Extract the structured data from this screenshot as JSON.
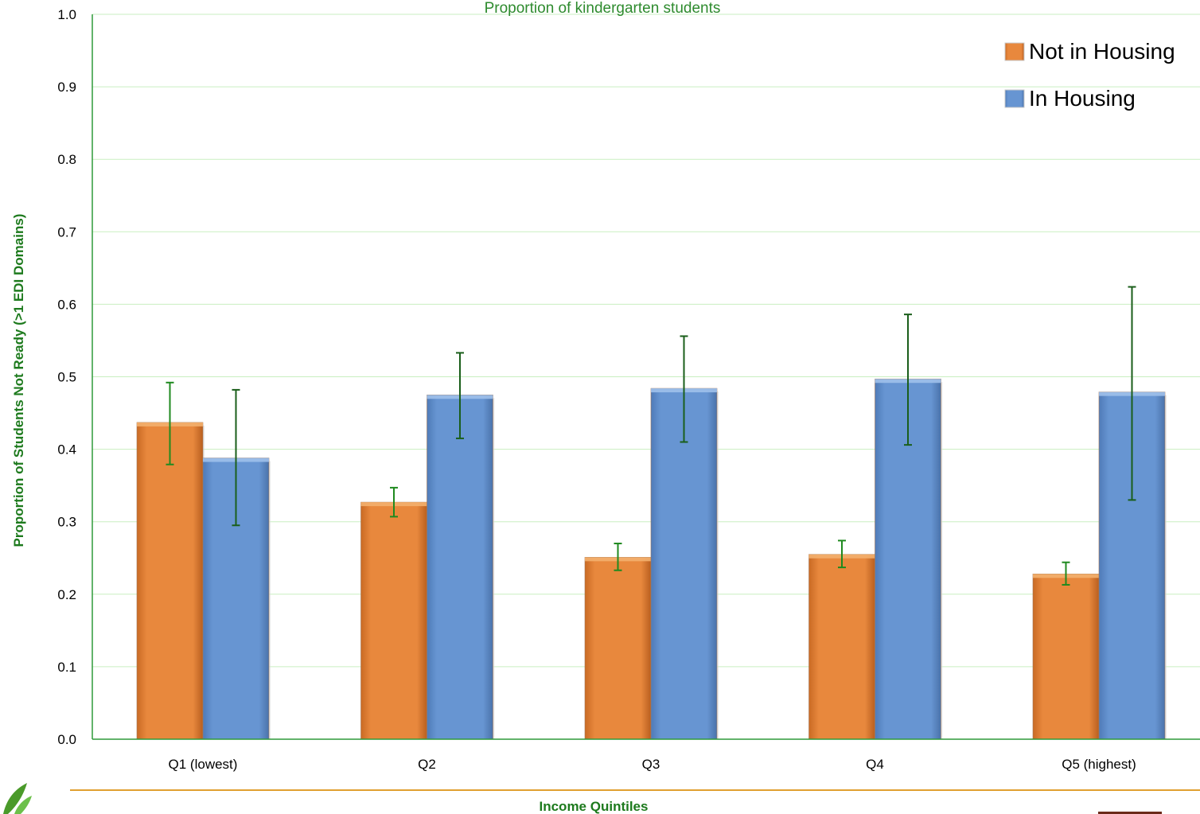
{
  "chart_data": {
    "type": "bar",
    "title": "Proportion of kindergarten students",
    "xlabel": "Income Quintiles",
    "ylabel": "Proportion of Students Not Ready (>1 EDI Domains)",
    "categories": [
      "Q1 (lowest)",
      "Q2",
      "Q3",
      "Q4",
      "Q5 (highest)"
    ],
    "ylim": [
      0,
      1.0
    ],
    "yticks": [
      "0.0",
      "0.1",
      "0.2",
      "0.3",
      "0.4",
      "0.5",
      "0.6",
      "0.7",
      "0.8",
      "0.9",
      "1.0"
    ],
    "grid": true,
    "legend_position": "top-right",
    "series": [
      {
        "name": "Not in Housing",
        "color": "#e8883d",
        "values": [
          0.437,
          0.327,
          0.251,
          0.255,
          0.228
        ],
        "error_low": [
          0.379,
          0.307,
          0.233,
          0.237,
          0.213
        ],
        "error_high": [
          0.492,
          0.347,
          0.27,
          0.274,
          0.244
        ]
      },
      {
        "name": "In Housing",
        "color": "#6795d2",
        "values": [
          0.388,
          0.475,
          0.484,
          0.497,
          0.479
        ],
        "error_low": [
          0.295,
          0.415,
          0.41,
          0.406,
          0.33
        ],
        "error_high": [
          0.482,
          0.533,
          0.556,
          0.586,
          0.624
        ]
      }
    ],
    "colors": {
      "grid": "#c9efc0",
      "axis": "#2e9a3a",
      "error_bar": "#1f8a1f",
      "error_bar_dark": "#1a5e1a",
      "separator": "#e0a030"
    }
  }
}
